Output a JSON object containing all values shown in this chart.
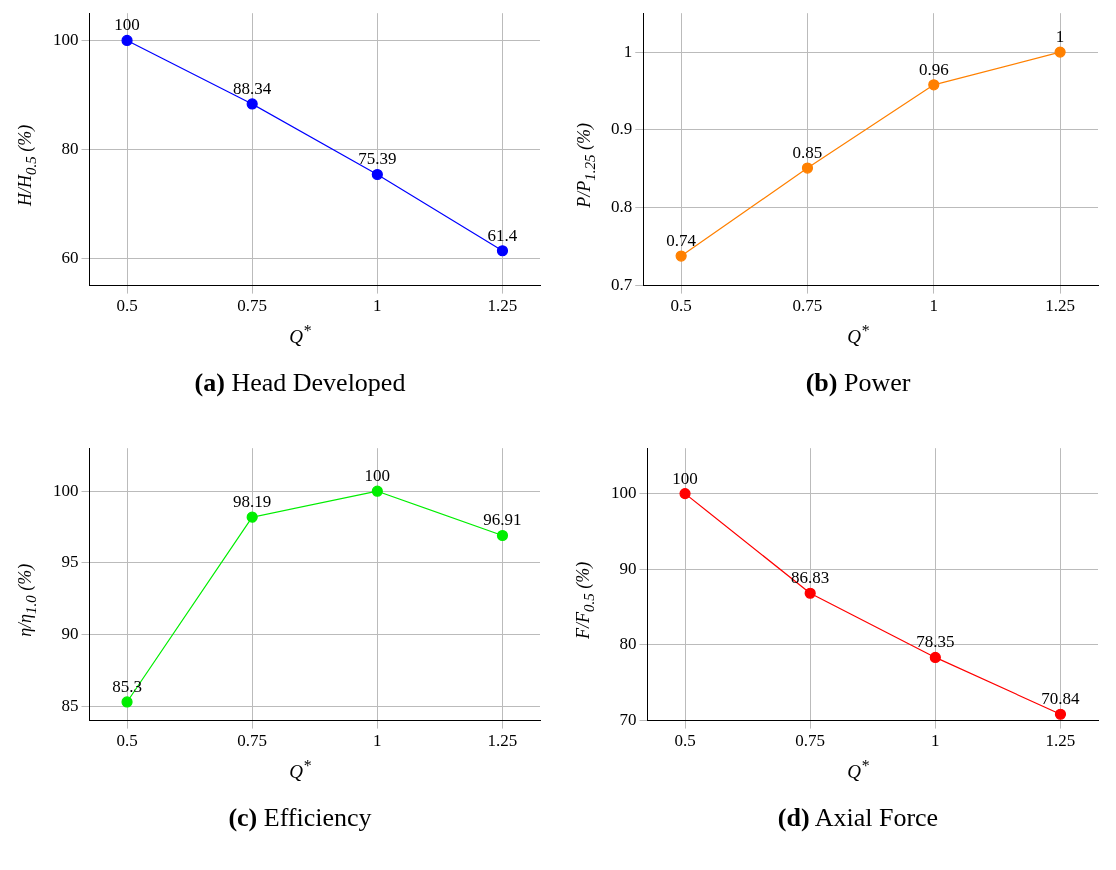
{
  "chart_data": [
    {
      "type": "line",
      "title": "(a) Head Developed",
      "xlabel": "Q$^{*}$",
      "ylabel": "H/H$_{0.5}$ (%)",
      "x": [
        0.5,
        0.75,
        1,
        1.25
      ],
      "series": [
        {
          "color": "#0000ff",
          "values": [
            100,
            88.34,
            75.39,
            61.4
          ]
        }
      ],
      "xlim": [
        0.425,
        1.325
      ],
      "xticks": [
        0.5,
        0.75,
        1,
        1.25
      ],
      "ylim": [
        55,
        105
      ],
      "yticks": [
        60,
        80,
        100
      ],
      "grid": true,
      "legend": false,
      "marker": "circle",
      "data_labels": true
    },
    {
      "type": "line",
      "title": "(b) Power",
      "xlabel": "Q$^{*}$",
      "ylabel": "P/P$_{1.25}$ (%)",
      "x": [
        0.5,
        0.75,
        1,
        1.25
      ],
      "series": [
        {
          "color": "#ff8000",
          "values": [
            0.738,
            0.851,
            0.958,
            1.0
          ],
          "value_labels": [
            "0.74",
            "0.85",
            "0.96",
            "1"
          ]
        }
      ],
      "xlim": [
        0.425,
        1.325
      ],
      "xticks": [
        0.5,
        0.75,
        1,
        1.25
      ],
      "ylim": [
        0.7,
        1.05
      ],
      "yticks": [
        0.7,
        0.8,
        0.9,
        1
      ],
      "grid": true,
      "legend": false,
      "marker": "circle"
    },
    {
      "type": "line",
      "title": "(c) Efficiency",
      "xlabel": "Q$^{*}$",
      "ylabel": "η/η$_{1.0}$ (%)",
      "x": [
        0.5,
        0.75,
        1,
        1.25
      ],
      "series": [
        {
          "color": "#00ee00",
          "values": [
            85.3,
            98.19,
            100,
            96.91
          ]
        }
      ],
      "xlim": [
        0.425,
        1.325
      ],
      "xticks": [
        0.5,
        0.75,
        1,
        1.25
      ],
      "ylim": [
        84,
        103
      ],
      "yticks": [
        85,
        90,
        95,
        100
      ],
      "grid": true,
      "legend": false,
      "marker": "circle",
      "data_labels": true
    },
    {
      "type": "line",
      "title": "(d) Axial Force",
      "xlabel": "Q$^{*}$",
      "ylabel": "F/F$_{0.5}$ (%)",
      "x": [
        0.5,
        0.75,
        1,
        1.25
      ],
      "series": [
        {
          "color": "#ff0000",
          "values": [
            100,
            86.83,
            78.35,
            70.84
          ]
        }
      ],
      "xlim": [
        0.425,
        1.325
      ],
      "xticks": [
        0.5,
        0.75,
        1,
        1.25
      ],
      "ylim": [
        70,
        106
      ],
      "yticks": [
        70,
        80,
        90,
        100
      ],
      "grid": true,
      "legend": false,
      "marker": "circle",
      "data_labels": true
    }
  ]
}
